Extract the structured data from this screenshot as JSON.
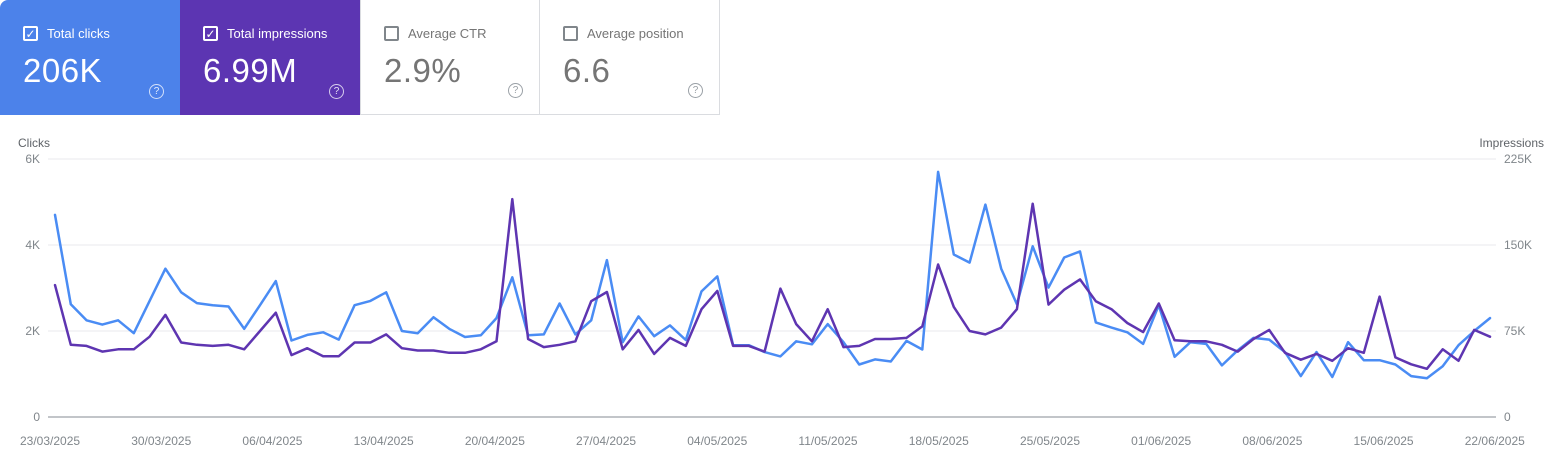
{
  "icons": {
    "check": "✓",
    "help": "?"
  },
  "colors": {
    "clicks_card_bg": "#4c82ea",
    "impressions_card_bg": "#5c35b2",
    "clicks_line": "#4a8cf4",
    "impressions_line": "#5e35b1",
    "grid_line": "#e9eaec",
    "axis_line": "#c2c5c9",
    "tick_text": "#80868b",
    "axis_title_text": "#5f6368",
    "white_card_text": "#757575"
  },
  "cards": [
    {
      "label": "Total clicks",
      "value": "206K",
      "checked": true
    },
    {
      "label": "Total impressions",
      "value": "6.99M",
      "checked": true
    },
    {
      "label": "Average CTR",
      "value": "2.9%",
      "checked": false
    },
    {
      "label": "Average position",
      "value": "6.6",
      "checked": false
    }
  ],
  "chart": {
    "left_axis": {
      "title": "Clicks",
      "ticks": [
        "6K",
        "4K",
        "2K",
        "0"
      ]
    },
    "right_axis": {
      "title": "Impressions",
      "ticks": [
        "225K",
        "150K",
        "75K",
        "0"
      ]
    }
  },
  "chart_data": {
    "type": "line",
    "grid": true,
    "x_unit": "day",
    "num_points": 92,
    "date_start": "23/03/2025",
    "date_end": "22/06/2025",
    "x_tick_labels": [
      "23/03/2025",
      "30/03/2025",
      "06/04/2025",
      "13/04/2025",
      "20/04/2025",
      "27/04/2025",
      "04/05/2025",
      "11/05/2025",
      "18/05/2025",
      "25/05/2025",
      "01/06/2025",
      "08/06/2025",
      "15/06/2025",
      "22/06/2025"
    ],
    "series": [
      {
        "name": "Clicks",
        "axis": "left",
        "ylim": [
          0,
          6000
        ],
        "tick_labels": [
          "0",
          "2K",
          "4K",
          "6K"
        ],
        "color": "#4a8cf4",
        "values": [
          4700,
          2620,
          2250,
          2150,
          2250,
          1950,
          2700,
          3450,
          2900,
          2650,
          2600,
          2570,
          2050,
          2600,
          3160,
          1780,
          1910,
          1970,
          1800,
          2600,
          2700,
          2900,
          2000,
          1950,
          2320,
          2050,
          1860,
          1900,
          2300,
          3250,
          1900,
          1920,
          2640,
          1920,
          2250,
          3650,
          1740,
          2340,
          1880,
          2130,
          1790,
          2920,
          3270,
          1670,
          1670,
          1510,
          1410,
          1760,
          1690,
          2160,
          1740,
          1220,
          1340,
          1290,
          1770,
          1570,
          5700,
          3780,
          3590,
          4940,
          3450,
          2620,
          3970,
          3010,
          3710,
          3850,
          2200,
          2080,
          1970,
          1700,
          2600,
          1400,
          1740,
          1700,
          1200,
          1550,
          1840,
          1800,
          1510,
          950,
          1510,
          930,
          1740,
          1320,
          1320,
          1220,
          950,
          900,
          1180,
          1670,
          2000,
          2300
        ]
      },
      {
        "name": "Impressions",
        "axis": "right",
        "ylim": [
          0,
          225000
        ],
        "tick_labels": [
          "0",
          "75K",
          "150K",
          "225K"
        ],
        "color": "#5e35b1",
        "values": [
          115000,
          63000,
          62000,
          57000,
          59000,
          59000,
          70000,
          89000,
          65000,
          63000,
          62000,
          63000,
          59000,
          75000,
          91000,
          54000,
          60000,
          53000,
          53000,
          65000,
          65000,
          72000,
          60000,
          58000,
          58000,
          56000,
          56000,
          59000,
          66000,
          190000,
          68000,
          61000,
          63000,
          66000,
          101000,
          109000,
          59000,
          76000,
          55000,
          69000,
          62000,
          94000,
          110000,
          62000,
          62000,
          57000,
          112000,
          81000,
          66000,
          94000,
          61000,
          62000,
          68000,
          68000,
          69000,
          79000,
          133000,
          96000,
          75000,
          72000,
          78000,
          94000,
          186000,
          98000,
          111000,
          120000,
          101000,
          94000,
          82000,
          74000,
          99000,
          67000,
          66000,
          66000,
          63000,
          57000,
          68000,
          76000,
          56000,
          50000,
          55000,
          49000,
          60000,
          56000,
          105000,
          52000,
          46000,
          42000,
          59000,
          49000,
          76000,
          70000
        ]
      }
    ]
  }
}
